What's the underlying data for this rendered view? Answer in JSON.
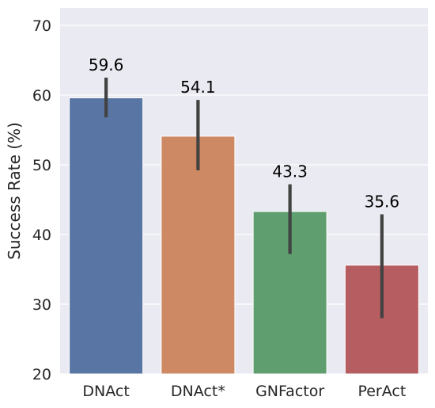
{
  "chart_data": {
    "type": "bar",
    "title": "",
    "xlabel": "",
    "ylabel": "Success Rate (%)",
    "ylim": [
      20,
      72.5
    ],
    "yticks": [
      20,
      30,
      40,
      50,
      60,
      70
    ],
    "grid": true,
    "legend": "none",
    "categories": [
      "DNAct",
      "DNAct*",
      "GNFactor",
      "PerAct"
    ],
    "values": [
      59.6,
      54.1,
      43.3,
      35.6
    ],
    "value_labels": [
      "59.6",
      "54.1",
      "43.3",
      "35.6"
    ],
    "error_low": [
      56.8,
      49.2,
      37.2,
      28.0
    ],
    "error_high": [
      62.5,
      59.3,
      47.2,
      42.9
    ],
    "colors": [
      "#5975a4",
      "#cc8963",
      "#5f9e6e",
      "#b55d60"
    ],
    "background_color": "#eaeaf2",
    "error_bar_color": "#424242"
  }
}
